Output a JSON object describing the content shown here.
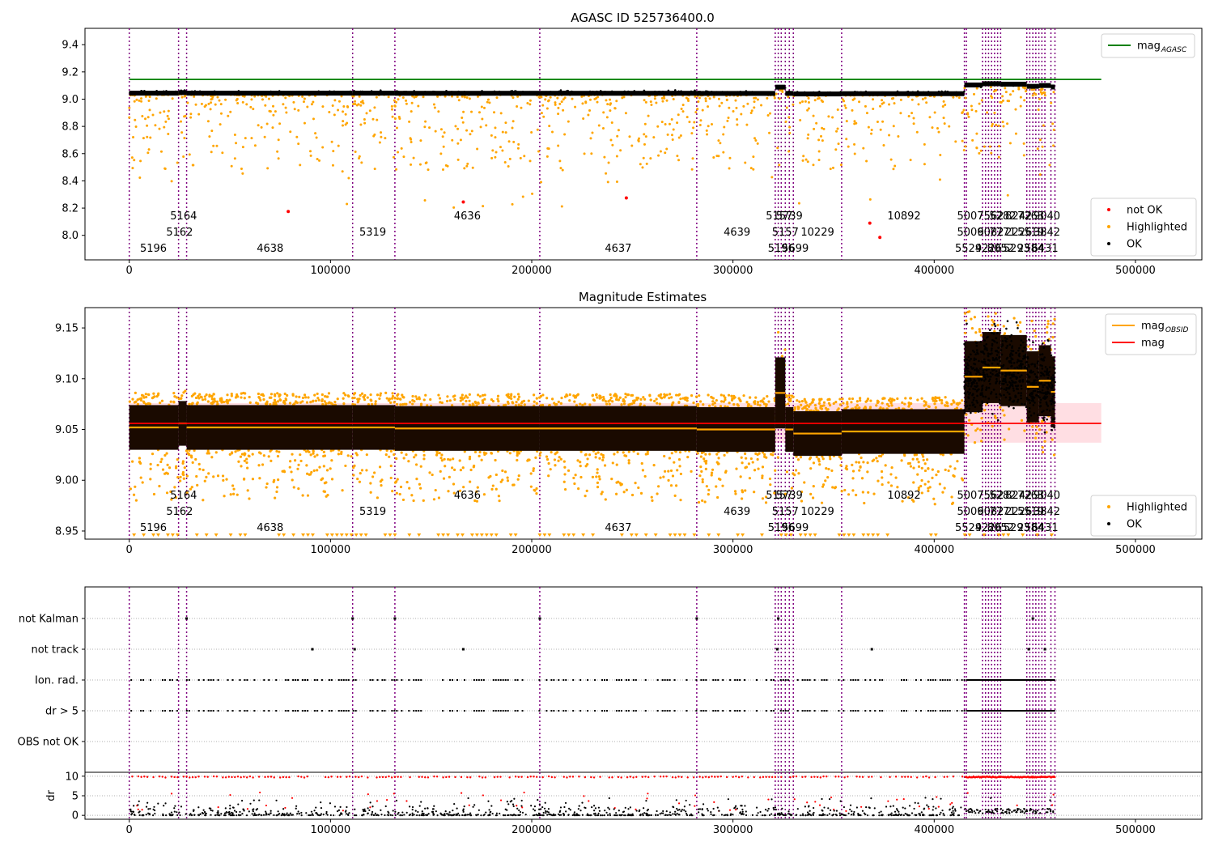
{
  "figure": {
    "title": "AGASC ID 525736400.0",
    "subtitle": "Magnitude Estimates"
  },
  "chart_data": [
    {
      "id": "top",
      "type": "scatter",
      "title": "AGASC ID 525736400.0",
      "xlim": [
        -22000,
        533000
      ],
      "ylim": [
        7.82,
        9.52
      ],
      "x_ticks": [
        0,
        100000,
        200000,
        300000,
        400000,
        500000
      ],
      "y_ticks": [
        8.0,
        8.2,
        8.4,
        8.6,
        8.8,
        9.0,
        9.2,
        9.4
      ],
      "mag_agasc": 9.145,
      "legends": [
        {
          "position": "top-right",
          "entries": [
            {
              "label": "mag",
              "sub": "AGASC",
              "color": "#008000",
              "kind": "line"
            }
          ]
        },
        {
          "position": "bottom-right",
          "entries": [
            {
              "label": "not OK",
              "color": "#ff0000",
              "kind": "dot"
            },
            {
              "label": "Highlighted",
              "color": "#ffa500",
              "kind": "dot"
            },
            {
              "label": "OK",
              "color": "#000000",
              "kind": "dot"
            }
          ]
        }
      ],
      "not_ok_points": [
        {
          "x": 79000,
          "y": 8.175
        },
        {
          "x": 166000,
          "y": 8.245
        },
        {
          "x": 247000,
          "y": 8.275
        },
        {
          "x": 368000,
          "y": 8.09
        },
        {
          "x": 373000,
          "y": 7.985
        }
      ]
    },
    {
      "id": "middle",
      "type": "scatter",
      "title": "Magnitude Estimates",
      "xlim": [
        -22000,
        533000
      ],
      "ylim": [
        8.942,
        9.17
      ],
      "x_ticks": [
        0,
        100000,
        200000,
        300000,
        400000,
        500000
      ],
      "y_ticks": [
        8.95,
        9.0,
        9.05,
        9.1,
        9.15
      ],
      "mag": 9.056,
      "mag_band": [
        9.037,
        9.076
      ],
      "legends": [
        {
          "position": "top-right",
          "entries": [
            {
              "label": "mag",
              "sub": "OBSID",
              "color": "#ffa500",
              "kind": "line"
            },
            {
              "label": "mag",
              "sub": "",
              "color": "#ff0000",
              "kind": "line"
            }
          ]
        },
        {
          "position": "bottom-right",
          "entries": [
            {
              "label": "Highlighted",
              "color": "#ffa500",
              "kind": "dot"
            },
            {
              "label": "OK",
              "color": "#000000",
              "kind": "dot"
            }
          ]
        }
      ],
      "obsid_mags": [
        {
          "x0": 0,
          "x1": 24500,
          "y": 9.052
        },
        {
          "x0": 24500,
          "x1": 28500,
          "y": 9.056
        },
        {
          "x0": 28500,
          "x1": 111000,
          "y": 9.052
        },
        {
          "x0": 111000,
          "x1": 132000,
          "y": 9.052
        },
        {
          "x0": 132000,
          "x1": 204000,
          "y": 9.051
        },
        {
          "x0": 204000,
          "x1": 282000,
          "y": 9.051
        },
        {
          "x0": 282000,
          "x1": 321000,
          "y": 9.05
        },
        {
          "x0": 321000,
          "x1": 326000,
          "y": 9.086
        },
        {
          "x0": 326000,
          "x1": 330000,
          "y": 9.05
        },
        {
          "x0": 330000,
          "x1": 354000,
          "y": 9.046
        },
        {
          "x0": 354000,
          "x1": 415000,
          "y": 9.048
        },
        {
          "x0": 415000,
          "x1": 424000,
          "y": 9.102
        },
        {
          "x0": 424000,
          "x1": 433000,
          "y": 9.111
        },
        {
          "x0": 433000,
          "x1": 446000,
          "y": 9.108
        },
        {
          "x0": 446000,
          "x1": 452000,
          "y": 9.092
        },
        {
          "x0": 452000,
          "x1": 458000,
          "y": 9.098
        },
        {
          "x0": 458000,
          "x1": 460000,
          "y": 9.087
        }
      ]
    },
    {
      "id": "flags",
      "type": "scatter",
      "xlim": [
        -22000,
        533000
      ],
      "categories": [
        "not Kalman",
        "not track",
        "Ion. rad.",
        "dr > 5",
        "OBS not OK"
      ]
    },
    {
      "id": "dr",
      "type": "scatter",
      "xlim": [
        -22000,
        533000
      ],
      "ylim": [
        -1,
        11
      ],
      "ylabel": "dr",
      "y_ticks": [
        0,
        5,
        10
      ],
      "x_ticks": [
        0,
        100000,
        200000,
        300000,
        400000,
        500000
      ]
    }
  ],
  "obsid_lines": [
    0,
    24500,
    28500,
    111000,
    132000,
    204000,
    282000,
    321000,
    322500,
    324000,
    326000,
    328000,
    330000,
    354000,
    415000,
    416000,
    424000,
    425500,
    427000,
    428500,
    430000,
    431500,
    433000,
    446000,
    447500,
    449000,
    450500,
    452000,
    453500,
    455000,
    458000,
    460000
  ],
  "obsid_labels": [
    {
      "text": "5164",
      "x": 27000,
      "row": 0
    },
    {
      "text": "5162",
      "x": 25000,
      "row": 1
    },
    {
      "text": "5196",
      "x": 12000,
      "row": 2
    },
    {
      "text": "4638",
      "x": 70000,
      "row": 2
    },
    {
      "text": "5319",
      "x": 121000,
      "row": 1
    },
    {
      "text": "4636",
      "x": 168000,
      "row": 0
    },
    {
      "text": "4637",
      "x": 243000,
      "row": 2
    },
    {
      "text": "4639",
      "x": 302000,
      "row": 1
    },
    {
      "text": "5157",
      "x": 323000,
      "row": 0
    },
    {
      "text": "5739",
      "x": 328000,
      "row": 0
    },
    {
      "text": "5157",
      "x": 326000,
      "row": 1
    },
    {
      "text": "5196",
      "x": 324000,
      "row": 2
    },
    {
      "text": "5699",
      "x": 331000,
      "row": 2
    },
    {
      "text": "10229",
      "x": 342000,
      "row": 1
    },
    {
      "text": "10892",
      "x": 385000,
      "row": 0
    },
    {
      "text": "5007",
      "x": 418000,
      "row": 0
    },
    {
      "text": "5006",
      "x": 418000,
      "row": 1
    },
    {
      "text": "5529",
      "x": 417000,
      "row": 2
    },
    {
      "text": "7562",
      "x": 428000,
      "row": 0
    },
    {
      "text": "9082",
      "x": 428000,
      "row": 1
    },
    {
      "text": "4226",
      "x": 427000,
      "row": 2
    },
    {
      "text": "5282",
      "x": 434000,
      "row": 0
    },
    {
      "text": "7771",
      "x": 434000,
      "row": 1
    },
    {
      "text": "8052",
      "x": 433000,
      "row": 2
    },
    {
      "text": "8242",
      "x": 442000,
      "row": 0
    },
    {
      "text": "2226",
      "x": 442000,
      "row": 1
    },
    {
      "text": "5293",
      "x": 441000,
      "row": 2
    },
    {
      "text": "7263",
      "x": 448000,
      "row": 0
    },
    {
      "text": "5519",
      "x": 448000,
      "row": 1
    },
    {
      "text": "2584",
      "x": 448000,
      "row": 2
    },
    {
      "text": "9040",
      "x": 456000,
      "row": 0
    },
    {
      "text": "3842",
      "x": 456000,
      "row": 1
    },
    {
      "text": "6431",
      "x": 455000,
      "row": 2
    }
  ],
  "colors": {
    "ok": "#000000",
    "highlighted": "#ffa500",
    "not_ok": "#ff0000",
    "agasc_line": "#008000",
    "mag_line": "#ff0000",
    "obsid_line": "#800080",
    "band": "#ffb6c1"
  }
}
